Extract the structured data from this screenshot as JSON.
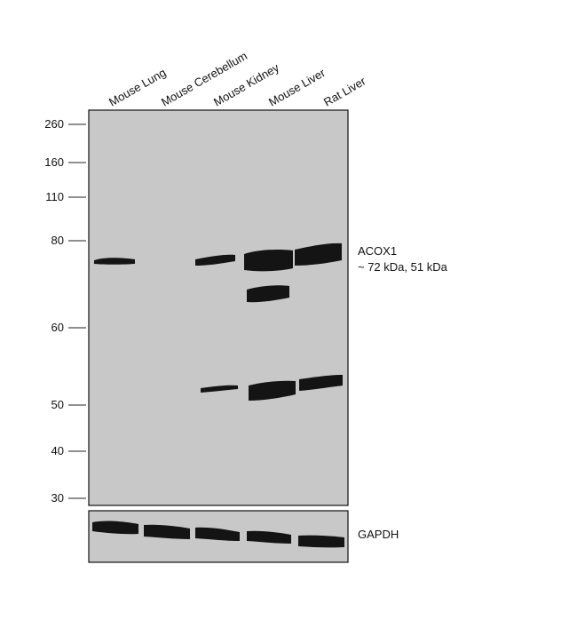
{
  "lanes": [
    {
      "label": "Mouse Lung"
    },
    {
      "label": "Mouse Cerebellum"
    },
    {
      "label": "Mouse Kidney"
    },
    {
      "label": "Mouse Liver"
    },
    {
      "label": "Rat Liver"
    }
  ],
  "markers": [
    {
      "label": "260"
    },
    {
      "label": "160"
    },
    {
      "label": "110"
    },
    {
      "label": "80"
    },
    {
      "label": "60"
    },
    {
      "label": "50"
    },
    {
      "label": "40"
    },
    {
      "label": "30"
    }
  ],
  "target": {
    "name": "ACOX1",
    "size": "~ 72 kDa, 51 kDa"
  },
  "loading_control": {
    "name": "GAPDH"
  },
  "colors": {
    "membrane": "#c8c8c8",
    "band": "#141414"
  }
}
